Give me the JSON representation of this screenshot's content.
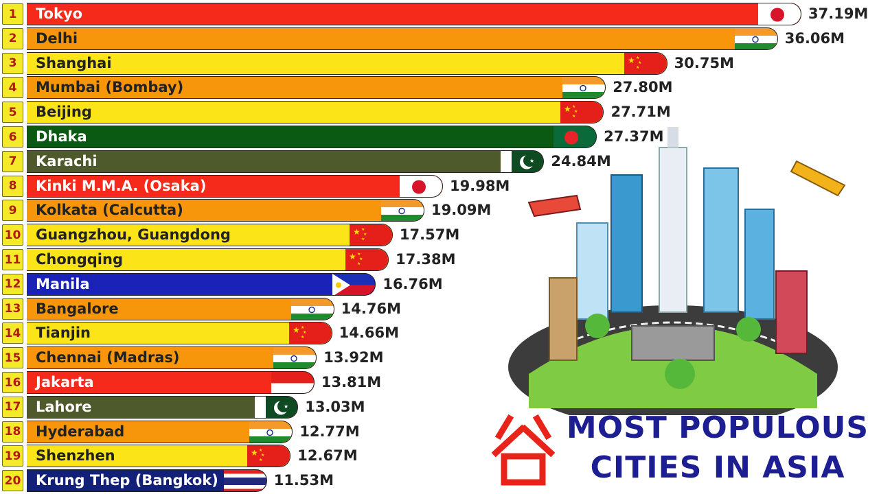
{
  "chart_data": {
    "type": "bar",
    "orientation": "horizontal",
    "title_line1": "MOST POPULOUS",
    "title_line2": "CITIES IN ASIA",
    "categories": [
      "Tokyo",
      "Delhi",
      "Shanghai",
      "Mumbai (Bombay)",
      "Beijing",
      "Dhaka",
      "Karachi",
      "Kinki M.M.A. (Osaka)",
      "Kolkata (Calcutta)",
      "Guangzhou, Guangdong",
      "Chongqing",
      "Manila",
      "Bangalore",
      "Tianjin",
      "Chennai (Madras)",
      "Jakarta",
      "Lahore",
      "Hyderabad",
      "Shenzhen",
      "Krung Thep (Bangkok)"
    ],
    "values": [
      37.19,
      36.06,
      30.75,
      27.8,
      27.71,
      27.37,
      24.84,
      19.98,
      19.09,
      17.57,
      17.38,
      16.76,
      14.76,
      14.66,
      13.92,
      13.81,
      13.03,
      12.77,
      12.67,
      11.53
    ],
    "value_labels": [
      "37.19M",
      "36.06M",
      "30.75M",
      "27.80M",
      "27.71M",
      "27.37M",
      "24.84M",
      "19.98M",
      "19.09M",
      "17.57M",
      "17.38M",
      "16.76M",
      "14.76M",
      "14.66M",
      "13.92M",
      "13.81M",
      "13.03M",
      "12.77M",
      "12.67M",
      "11.53M"
    ],
    "ranks": [
      "1",
      "2",
      "3",
      "4",
      "5",
      "6",
      "7",
      "8",
      "9",
      "10",
      "11",
      "12",
      "13",
      "14",
      "15",
      "16",
      "17",
      "18",
      "19",
      "20"
    ],
    "countries": [
      "japan",
      "india",
      "china",
      "india",
      "china",
      "bangladesh",
      "pakistan",
      "japan",
      "india",
      "china",
      "china",
      "philippines",
      "india",
      "china",
      "india",
      "indonesia",
      "pakistan",
      "india",
      "china",
      "thailand"
    ],
    "country_colors": {
      "japan": "#f52a1a",
      "india": "#f7960a",
      "china": "#fbe418",
      "bangladesh": "#0a5a14",
      "pakistan": "#4f5a2c",
      "philippines": "#1a22b8",
      "indonesia": "#f52a1a",
      "thailand": "#13207a"
    },
    "light_text_countries": [
      "japan",
      "bangladesh",
      "pakistan",
      "philippines",
      "indonesia",
      "thailand"
    ],
    "xlim": [
      0,
      37.19
    ]
  }
}
